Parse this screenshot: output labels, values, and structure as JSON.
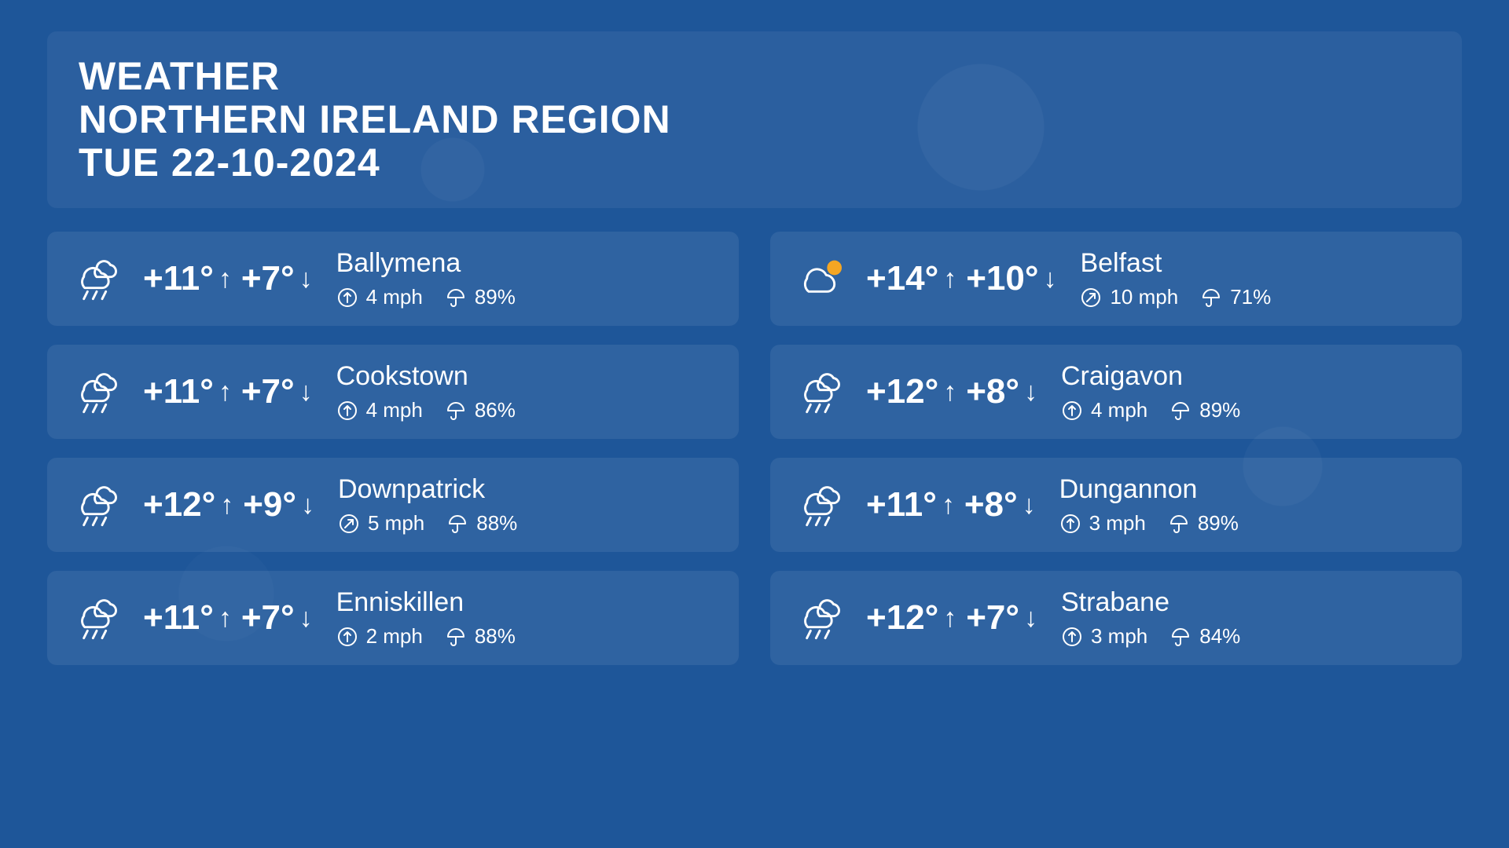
{
  "colors": {
    "background": "#1e5699",
    "card_bg": "rgba(255,255,255,0.08)",
    "header_bg": "rgba(255,255,255,0.06)",
    "text": "#ffffff",
    "sun": "#f5a623"
  },
  "header": {
    "line1": "WEATHER",
    "line2": "NORTHERN IRELAND REGION",
    "line3": "TUE 22-10-2024"
  },
  "wind_unit": "mph",
  "locations": [
    {
      "name": "Ballymena",
      "hi": "+11°",
      "lo": "+7°",
      "condition": "rain",
      "wind_dir": "N",
      "wind": "4",
      "precip": "89%"
    },
    {
      "name": "Belfast",
      "hi": "+14°",
      "lo": "+10°",
      "condition": "partly-sunny",
      "wind_dir": "NE",
      "wind": "10",
      "precip": "71%"
    },
    {
      "name": "Cookstown",
      "hi": "+11°",
      "lo": "+7°",
      "condition": "rain",
      "wind_dir": "N",
      "wind": "4",
      "precip": "86%"
    },
    {
      "name": "Craigavon",
      "hi": "+12°",
      "lo": "+8°",
      "condition": "rain",
      "wind_dir": "N",
      "wind": "4",
      "precip": "89%"
    },
    {
      "name": "Downpatrick",
      "hi": "+12°",
      "lo": "+9°",
      "condition": "rain",
      "wind_dir": "NE",
      "wind": "5",
      "precip": "88%"
    },
    {
      "name": "Dungannon",
      "hi": "+11°",
      "lo": "+8°",
      "condition": "rain",
      "wind_dir": "N",
      "wind": "3",
      "precip": "89%"
    },
    {
      "name": "Enniskillen",
      "hi": "+11°",
      "lo": "+7°",
      "condition": "rain",
      "wind_dir": "N",
      "wind": "2",
      "precip": "88%"
    },
    {
      "name": "Strabane",
      "hi": "+12°",
      "lo": "+7°",
      "condition": "rain",
      "wind_dir": "N",
      "wind": "3",
      "precip": "84%"
    }
  ]
}
